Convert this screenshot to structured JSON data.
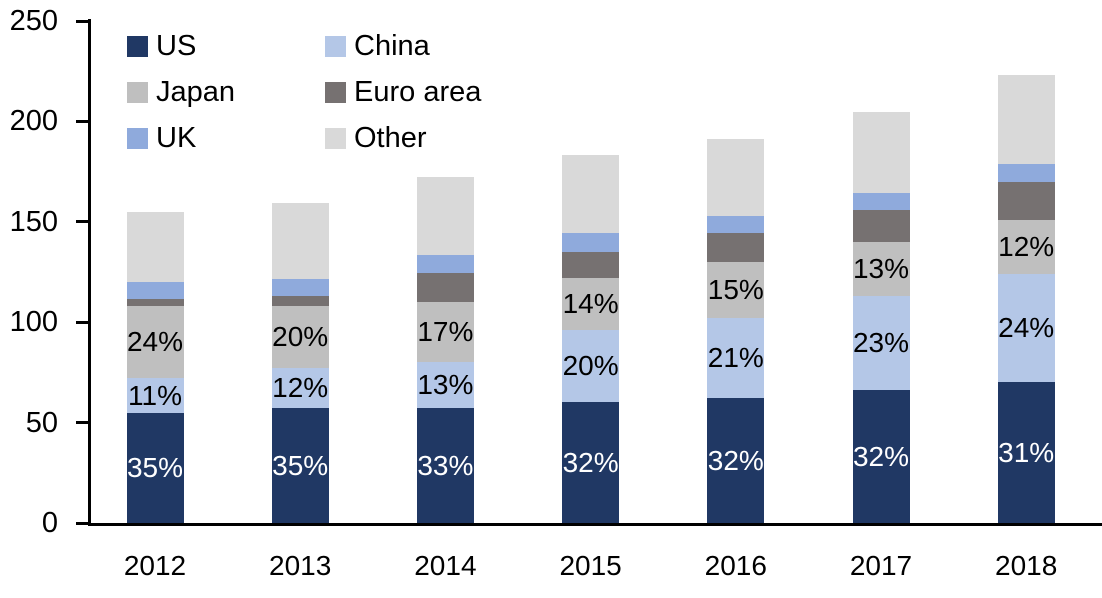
{
  "chart_data": {
    "type": "bar",
    "stacked": true,
    "title": "",
    "xlabel": "",
    "ylabel": "",
    "ylim": [
      0,
      250
    ],
    "yticks": [
      0,
      50,
      100,
      150,
      200,
      250
    ],
    "grid": false,
    "legend_position": "top-left",
    "legend_columns": 2,
    "categories": [
      "2012",
      "2013",
      "2014",
      "2015",
      "2016",
      "2017",
      "2018"
    ],
    "series": [
      {
        "name": "US",
        "color": "#203864",
        "values": [
          55,
          57,
          57,
          60,
          62,
          66,
          70
        ],
        "labels": [
          "35%",
          "35%",
          "33%",
          "32%",
          "32%",
          "32%",
          "31%"
        ],
        "label_color": "#ffffff"
      },
      {
        "name": "China",
        "color": "#b4c7e7",
        "values": [
          17,
          20,
          23,
          36,
          40,
          47,
          54
        ],
        "labels": [
          "11%",
          "12%",
          "13%",
          "20%",
          "21%",
          "23%",
          "24%"
        ],
        "label_color": "#000000"
      },
      {
        "name": "Japan",
        "color": "#bfbfbf",
        "values": [
          36,
          31,
          30,
          26,
          28,
          27,
          27
        ],
        "labels": [
          "24%",
          "20%",
          "17%",
          "14%",
          "15%",
          "13%",
          "12%"
        ],
        "label_color": "#000000"
      },
      {
        "name": "Euro area",
        "color": "#767171",
        "values": [
          3.5,
          5,
          14.5,
          13,
          14.5,
          16,
          19
        ],
        "labels": [
          null,
          null,
          null,
          null,
          null,
          null,
          null
        ],
        "label_color": "#000000"
      },
      {
        "name": "UK",
        "color": "#8faadc",
        "values": [
          8.5,
          8.5,
          9,
          9.5,
          8.5,
          8.5,
          9
        ],
        "labels": [
          null,
          null,
          null,
          null,
          null,
          null,
          null
        ],
        "label_color": "#000000"
      },
      {
        "name": "Other",
        "color": "#d9d9d9",
        "values": [
          35,
          38,
          39,
          39,
          38.5,
          40,
          44
        ],
        "labels": [
          null,
          null,
          null,
          null,
          null,
          null,
          null
        ],
        "label_color": "#000000"
      }
    ],
    "totals": [
      155,
      159.5,
      172.5,
      183.5,
      191.5,
      204.5,
      223
    ]
  },
  "colors": {
    "axis": "#000000",
    "background": "#ffffff"
  }
}
